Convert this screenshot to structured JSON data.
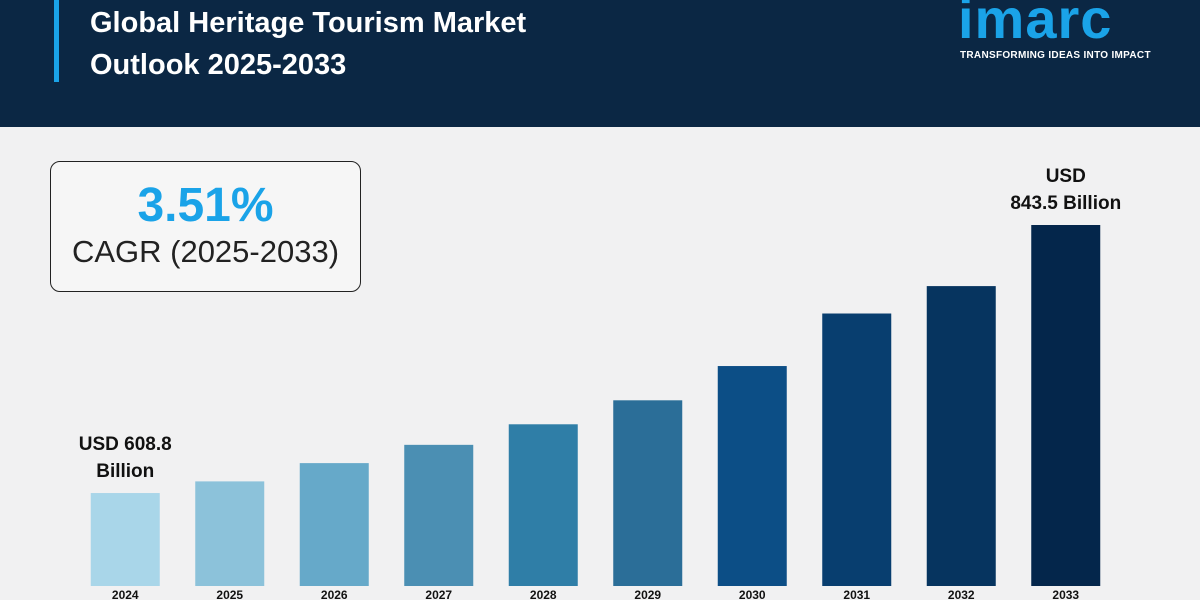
{
  "header": {
    "title": "Global Heritage Tourism Market Outlook 2025-2033",
    "logo": "imarc",
    "tagline": "TRANSFORMING IDEAS INTO IMPACT"
  },
  "chart_data": {
    "type": "bar",
    "annotation": {
      "value": "3.51%",
      "label": "CAGR (2025-2033)"
    },
    "categories": [
      "2024",
      "2025",
      "2026",
      "2027",
      "2028",
      "2029",
      "2030",
      "2031",
      "2032",
      "2033"
    ],
    "values": [
      608.8,
      619,
      635,
      651,
      669,
      690,
      720,
      766,
      790,
      843.5
    ],
    "value_labels": [
      "USD 608.8\nBillion",
      null,
      null,
      null,
      null,
      null,
      null,
      null,
      null,
      "USD\n843.5 Billion"
    ],
    "colors": [
      "#a9d6e9",
      "#8cc2da",
      "#66a9c9",
      "#4b8fb3",
      "#2f7ea7",
      "#2b6e98",
      "#0c4e86",
      "#083e6f",
      "#06345f",
      "#04264b"
    ],
    "ylim": [
      527.4,
      843.5
    ]
  }
}
